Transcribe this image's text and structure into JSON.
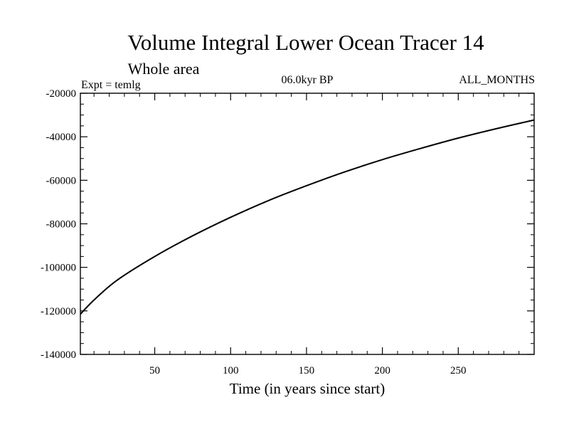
{
  "chart_data": {
    "type": "line",
    "title": "Volume Integral Lower Ocean Tracer 14",
    "subtitle": "Whole area",
    "expt_label": "Expt = temlg",
    "period_label": "06.0kyr BP",
    "months_label": "ALL_MONTHS",
    "xlabel": "Time (in years since start)",
    "ylabel": "",
    "xlim": [
      1,
      300
    ],
    "ylim": [
      -140000,
      -20000
    ],
    "x_ticks": [
      50,
      100,
      150,
      200,
      250
    ],
    "x_tick_labels": [
      "50",
      "100",
      "150",
      "200",
      "250"
    ],
    "y_ticks": [
      -140000,
      -120000,
      -100000,
      -80000,
      -60000,
      -40000,
      -20000
    ],
    "y_tick_labels": [
      "-140000",
      "-120000",
      "-100000",
      "-80000",
      "-60000",
      "-40000",
      "-20000"
    ],
    "grid": false,
    "series": [
      {
        "name": "Tracer 14",
        "x": [
          1,
          10,
          25,
          50,
          75,
          100,
          125,
          150,
          175,
          200,
          225,
          250,
          275,
          300
        ],
        "y": [
          -121500,
          -115000,
          -106000,
          -95000,
          -85500,
          -77000,
          -69300,
          -62500,
          -56200,
          -50500,
          -45400,
          -40600,
          -36300,
          -32300
        ]
      }
    ]
  }
}
